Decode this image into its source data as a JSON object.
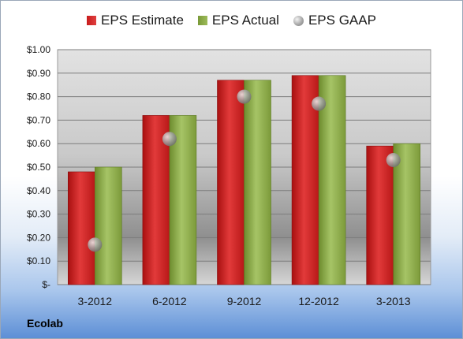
{
  "legend": {
    "estimate": "EPS Estimate",
    "actual": "EPS Actual",
    "gaap": "EPS GAAP"
  },
  "company": "Ecolab",
  "colors": {
    "estimate": "#c81c1c",
    "actual": "#8fae4a",
    "gaap": "#a0a0a0"
  },
  "chart_data": {
    "type": "bar",
    "categories": [
      "3-2012",
      "6-2012",
      "9-2012",
      "12-2012",
      "3-2013"
    ],
    "series": [
      {
        "name": "EPS Estimate",
        "type": "bar",
        "values": [
          0.48,
          0.72,
          0.87,
          0.89,
          0.59
        ]
      },
      {
        "name": "EPS Actual",
        "type": "bar",
        "values": [
          0.5,
          0.72,
          0.87,
          0.89,
          0.6
        ]
      },
      {
        "name": "EPS GAAP",
        "type": "scatter",
        "values": [
          0.17,
          0.62,
          0.8,
          0.77,
          0.53
        ]
      }
    ],
    "ylim": [
      0,
      1.0
    ],
    "yticks": [
      0,
      0.1,
      0.2,
      0.3,
      0.4,
      0.5,
      0.6,
      0.7,
      0.8,
      0.9,
      1.0
    ],
    "ytick_labels": [
      "$-",
      "$0.10",
      "$0.20",
      "$0.30",
      "$0.40",
      "$0.50",
      "$0.60",
      "$0.70",
      "$0.80",
      "$0.90",
      "$1.00"
    ],
    "grid": true,
    "legend_position": "top"
  }
}
